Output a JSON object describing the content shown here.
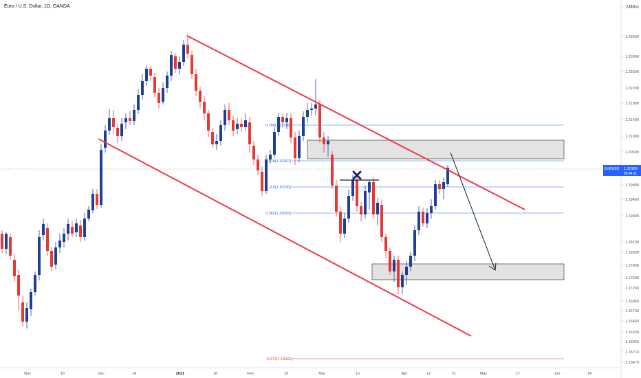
{
  "header": {
    "title": "Euro / U.S. Dollar, 1D, OANDA"
  },
  "price_axis": {
    "currency": "USD",
    "ticks": [
      "1.24000",
      "1.23500",
      "1.23000",
      "1.22600",
      "1.22200",
      "1.21800",
      "1.21400",
      "1.21000",
      "1.20600",
      "1.19800",
      "1.19400",
      "1.19000",
      "1.18700",
      "1.18300",
      "1.17800",
      "1.17500",
      "1.17200",
      "1.16950",
      "1.16700",
      "1.16450",
      "1.16200",
      "1.15950",
      "1.15710",
      "1.15470"
    ],
    "current_label": "EURUSD",
    "current_price": "1.20168",
    "countdown": "06:44:11"
  },
  "time_axis": {
    "ticks": [
      "Nov",
      "16",
      "Dec",
      "14",
      "2021",
      "18",
      "Feb",
      "15",
      "Mar",
      "15",
      "Apr",
      "12",
      "21",
      "May",
      "17",
      "Jun",
      "14"
    ]
  },
  "fib_levels": [
    {
      "label": "0.786(1.21290)"
    },
    {
      "label": "0.618(1.20367)"
    },
    {
      "label": "0.5(1.19730)"
    },
    {
      "label": "0.382(1.19093)"
    },
    {
      "label": "-0.272(1.15562)"
    }
  ],
  "colors": {
    "up": "#1e3f94",
    "down": "#e53935",
    "channel": "#f23645",
    "fib": "#2962ff",
    "zone": "#d6d6d6"
  },
  "chart_data": {
    "type": "candlestick",
    "title": "Euro / U.S. Dollar, 1D, OANDA",
    "symbol": "EURUSD",
    "ylim": [
      1.153,
      1.242
    ],
    "last_price": 1.20168,
    "fib_levels": [
      {
        "ratio": 0.786,
        "price": 1.2129
      },
      {
        "ratio": 0.618,
        "price": 1.20367
      },
      {
        "ratio": 0.5,
        "price": 1.1973
      },
      {
        "ratio": 0.382,
        "price": 1.19093
      },
      {
        "ratio": -0.272,
        "price": 1.15562
      }
    ],
    "supply_zone": [
      1.2037,
      1.2088
    ],
    "demand_zone": [
      1.1745,
      1.1788
    ]
  }
}
